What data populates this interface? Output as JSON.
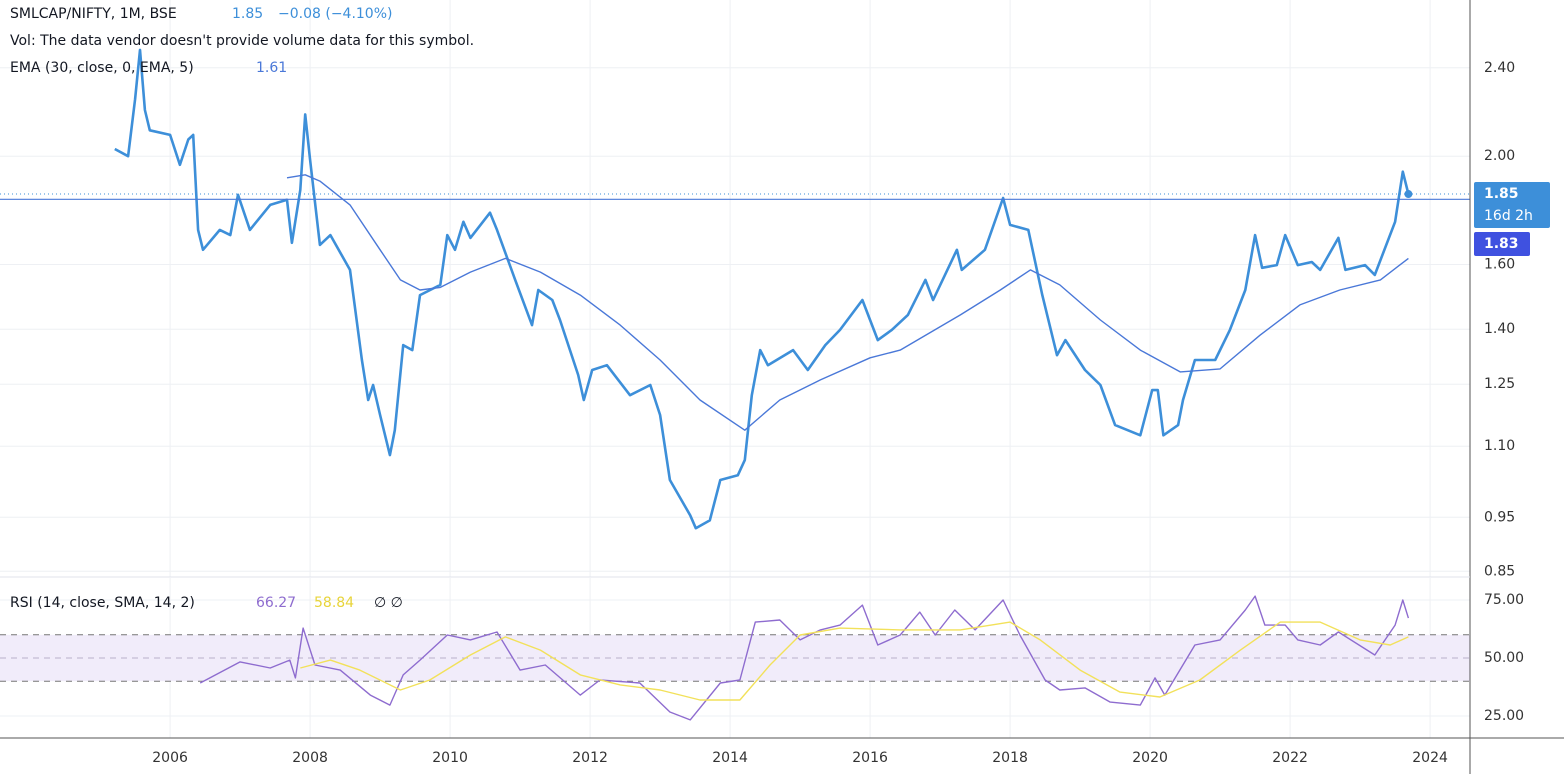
{
  "chart_data": [
    {
      "type": "line",
      "ylog": true,
      "grid": true,
      "note": "Vol: The data vendor doesn't provide volume data for this symbol.",
      "last_value": 1.85,
      "change": "−0.08 (−4.10%)",
      "countdown": "16d 2h",
      "price_line": 1.83,
      "ema_value": 1.61,
      "xlim": [
        2003.57,
        2024.57
      ],
      "xticks": [
        2006,
        2008,
        2010,
        2012,
        2014,
        2016,
        2018,
        2020,
        2022,
        2024
      ],
      "ylim": [
        0.84,
        2.76
      ],
      "yticks": [
        0.85,
        0.95,
        {
          "value": 1.1,
          "label": "1.10"
        },
        1.25,
        {
          "value": 1.4,
          "label": "1.40"
        },
        {
          "value": 1.6,
          "label": "1.60"
        },
        {
          "value": 2,
          "label": "2.00"
        },
        {
          "value": 2.4,
          "label": "2.40"
        }
      ],
      "series": [
        {
          "name": "SMLCAP/NIFTY, 1M, BSE",
          "color": "#3d8fd9",
          "x": [
            2005.21,
            2005.4,
            2005.5,
            2005.57,
            2005.64,
            2005.71,
            2006.0,
            2006.14,
            2006.26,
            2006.33,
            2006.4,
            2006.47,
            2006.71,
            2006.86,
            2006.97,
            2007.14,
            2007.43,
            2007.67,
            2007.74,
            2007.86,
            2007.93,
            2008.0,
            2008.14,
            2008.29,
            2008.57,
            2008.74,
            2008.83,
            2008.9,
            2009.0,
            2009.14,
            2009.21,
            2009.33,
            2009.46,
            2009.57,
            2009.86,
            2009.96,
            2010.07,
            2010.19,
            2010.29,
            2010.57,
            2010.67,
            2010.93,
            2011.17,
            2011.26,
            2011.46,
            2011.57,
            2011.83,
            2011.91,
            2012.03,
            2012.24,
            2012.57,
            2012.86,
            2013.0,
            2013.14,
            2013.43,
            2013.51,
            2013.71,
            2013.86,
            2014.11,
            2014.21,
            2014.31,
            2014.43,
            2014.54,
            2014.9,
            2015.11,
            2015.36,
            2015.57,
            2015.89,
            2016.11,
            2016.31,
            2016.54,
            2016.79,
            2016.9,
            2017.24,
            2017.31,
            2017.64,
            2017.9,
            2018.0,
            2018.26,
            2018.46,
            2018.67,
            2018.79,
            2019.07,
            2019.29,
            2019.5,
            2019.86,
            2020.03,
            2020.11,
            2020.19,
            2020.4,
            2020.47,
            2020.64,
            2020.93,
            2021.14,
            2021.36,
            2021.5,
            2021.6,
            2021.81,
            2021.93,
            2022.11,
            2022.31,
            2022.43,
            2022.69,
            2022.79,
            2023.07,
            2023.21,
            2023.5,
            2023.61,
            2023.69
          ],
          "values": [
            2.03,
            2.0,
            2.25,
            2.49,
            2.2,
            2.11,
            2.09,
            1.965,
            2.07,
            2.09,
            1.718,
            1.649,
            1.718,
            1.7,
            1.847,
            1.718,
            1.809,
            1.828,
            1.673,
            1.866,
            2.18,
            1.985,
            1.666,
            1.7,
            1.582,
            1.314,
            1.21,
            1.248,
            1.173,
            1.08,
            1.137,
            1.355,
            1.341,
            1.502,
            1.534,
            1.7,
            1.649,
            1.747,
            1.69,
            1.78,
            1.718,
            1.55,
            1.412,
            1.518,
            1.487,
            1.427,
            1.274,
            1.21,
            1.287,
            1.3,
            1.222,
            1.248,
            1.173,
            1.026,
            0.954,
            0.929,
            0.944,
            1.026,
            1.036,
            1.069,
            1.222,
            1.341,
            1.3,
            1.341,
            1.287,
            1.355,
            1.398,
            1.487,
            1.369,
            1.398,
            1.442,
            1.55,
            1.487,
            1.649,
            1.582,
            1.649,
            1.835,
            1.736,
            1.718,
            1.502,
            1.327,
            1.369,
            1.287,
            1.248,
            1.149,
            1.125,
            1.235,
            1.235,
            1.125,
            1.149,
            1.21,
            1.314,
            1.314,
            1.398,
            1.518,
            1.7,
            1.589,
            1.598,
            1.7,
            1.598,
            1.608,
            1.582,
            1.69,
            1.582,
            1.598,
            1.566,
            1.747,
            1.937,
            1.85
          ]
        },
        {
          "name": "EMA (30, close, 0, EMA, 5)",
          "color": "#4a78d8",
          "x": [
            2007.67,
            2007.93,
            2008.14,
            2008.57,
            2009.0,
            2009.29,
            2009.57,
            2009.86,
            2010.29,
            2010.79,
            2011.29,
            2011.86,
            2012.43,
            2013.0,
            2013.57,
            2014.21,
            2014.71,
            2015.29,
            2016.0,
            2016.43,
            2017.29,
            2017.86,
            2018.29,
            2018.71,
            2019.29,
            2019.86,
            2020.43,
            2021.0,
            2021.57,
            2022.14,
            2022.71,
            2023.29,
            2023.69
          ],
          "values": [
            1.913,
            1.925,
            1.9,
            1.809,
            1.649,
            1.55,
            1.518,
            1.526,
            1.575,
            1.62,
            1.575,
            1.502,
            1.412,
            1.314,
            1.21,
            1.137,
            1.21,
            1.261,
            1.32,
            1.341,
            1.442,
            1.518,
            1.582,
            1.534,
            1.427,
            1.341,
            1.282,
            1.29,
            1.383,
            1.472,
            1.518,
            1.55,
            1.62
          ]
        }
      ]
    },
    {
      "type": "line",
      "grid": true,
      "bands": [
        40,
        50,
        60
      ],
      "rsi_value": 66.27,
      "sma_value": 58.84,
      "extra": "∅ ∅",
      "xlim": [
        2003.57,
        2024.57
      ],
      "ylim": [
        15.5,
        84.5
      ],
      "yticks": [
        {
          "value": 25,
          "label": "25.00"
        },
        {
          "value": 50,
          "label": "50.00"
        },
        {
          "value": 75,
          "label": "75.00"
        }
      ],
      "series": [
        {
          "name": "RSI (14, close, SMA, 14, 2)",
          "color": "#8e6ccf",
          "x": [
            2006.43,
            2007.0,
            2007.43,
            2007.71,
            2007.79,
            2007.9,
            2008.07,
            2008.43,
            2008.86,
            2009.14,
            2009.33,
            2009.57,
            2009.96,
            2010.29,
            2010.67,
            2011.0,
            2011.36,
            2011.86,
            2012.14,
            2012.71,
            2013.14,
            2013.43,
            2013.86,
            2014.14,
            2014.36,
            2014.71,
            2015.0,
            2015.29,
            2015.57,
            2015.89,
            2016.11,
            2016.43,
            2016.71,
            2016.93,
            2017.21,
            2017.5,
            2017.9,
            2018.14,
            2018.5,
            2018.71,
            2019.07,
            2019.43,
            2019.86,
            2020.07,
            2020.21,
            2020.64,
            2021.0,
            2021.36,
            2021.5,
            2021.64,
            2021.93,
            2022.11,
            2022.43,
            2022.69,
            2023.21,
            2023.5,
            2023.61,
            2023.69
          ],
          "values": [
            39.2,
            48.3,
            45.7,
            49.1,
            41.4,
            62.9,
            47,
            44.8,
            34,
            29.7,
            42.7,
            49.1,
            59.9,
            57.8,
            61.2,
            44.8,
            47,
            34,
            40.5,
            39.2,
            26.7,
            23.3,
            39.2,
            40.5,
            65.5,
            66.4,
            57.8,
            62.1,
            64.2,
            72.8,
            55.6,
            59.9,
            69.8,
            59.9,
            70.7,
            62.1,
            75,
            59.9,
            40.5,
            36.2,
            37.1,
            31,
            29.7,
            41.4,
            34,
            55.6,
            57.8,
            70.7,
            76.7,
            64.2,
            64.2,
            57.8,
            55.6,
            61.2,
            51.3,
            64.2,
            75,
            67.2
          ]
        },
        {
          "color": "#f2e15a",
          "x": [
            2007.86,
            2008.29,
            2008.71,
            2009.29,
            2009.71,
            2010.29,
            2010.79,
            2011.29,
            2011.86,
            2012.43,
            2013.0,
            2013.57,
            2014.14,
            2014.57,
            2015.0,
            2015.57,
            2016.43,
            2017.29,
            2018.0,
            2018.43,
            2019.0,
            2019.57,
            2020.14,
            2020.71,
            2021.29,
            2021.86,
            2022.43,
            2023.0,
            2023.43,
            2023.69
          ],
          "values": [
            45.7,
            49.1,
            44.8,
            36.2,
            40.5,
            51.3,
            59.1,
            53.4,
            42.7,
            38.4,
            36.2,
            31.9,
            31.9,
            47,
            59.9,
            62.9,
            62.1,
            62.1,
            65.5,
            57.8,
            44.8,
            35.3,
            33.2,
            40.5,
            53.4,
            65.5,
            65.5,
            57.8,
            55.6,
            59.1
          ]
        }
      ]
    }
  ]
}
